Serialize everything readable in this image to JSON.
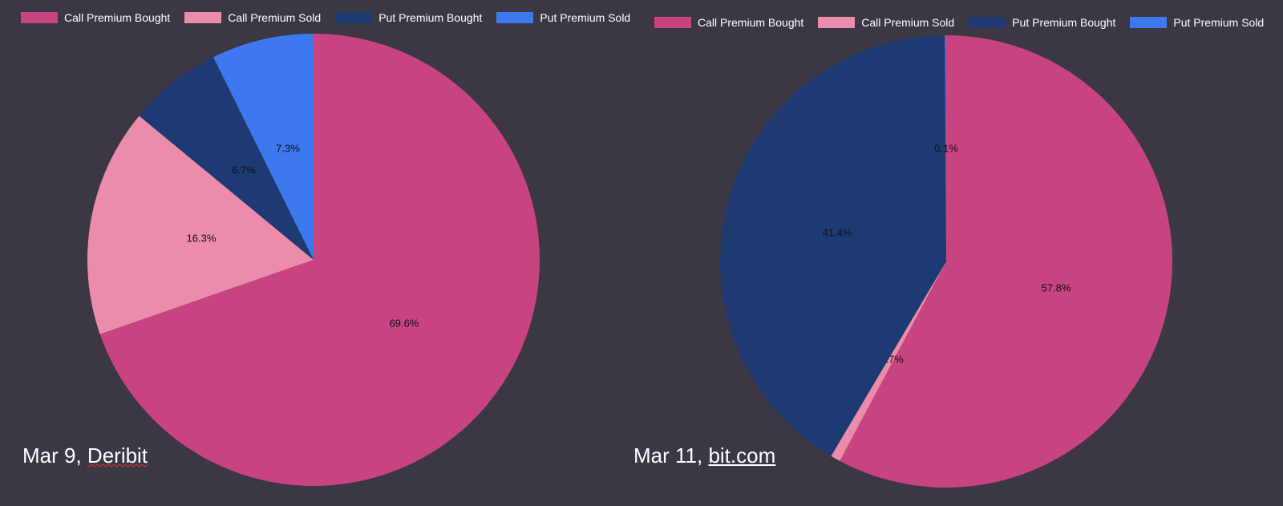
{
  "colors": {
    "call_bought": "#c84480",
    "call_sold": "#eb8cab",
    "put_bought": "#1e3a73",
    "put_sold": "#3d78ee",
    "background": "#3b3844"
  },
  "legend": [
    {
      "label": "Call Premium Bought",
      "color": "#c84480"
    },
    {
      "label": "Call Premium Sold",
      "color": "#eb8cab"
    },
    {
      "label": "Put Premium Bought",
      "color": "#1e3a73"
    },
    {
      "label": "Put Premium Sold",
      "color": "#3d78ee"
    }
  ],
  "captions": {
    "left": {
      "prefix": "Mar 9, ",
      "source": "Deribit"
    },
    "right": {
      "prefix": "Mar 11, ",
      "source": "bit.com"
    }
  },
  "chart_data": [
    {
      "type": "pie",
      "title": "",
      "labels": [
        "Call Premium Bought",
        "Call Premium Sold",
        "Put Premium Bought",
        "Put Premium Sold"
      ],
      "values": [
        69.6,
        16.3,
        6.7,
        7.3
      ],
      "value_labels": [
        "69.6%",
        "16.3%",
        "6.7%",
        "7.3%"
      ],
      "legend_position": "top"
    },
    {
      "type": "pie",
      "title": "",
      "labels": [
        "Call Premium Bought",
        "Call Premium Sold",
        "Put Premium Bought",
        "Put Premium Sold"
      ],
      "values": [
        57.8,
        0.7,
        41.4,
        0.1
      ],
      "value_labels": [
        "57.8%",
        "0.7%",
        "41.4%",
        "0.1%"
      ],
      "legend_position": "top"
    }
  ]
}
